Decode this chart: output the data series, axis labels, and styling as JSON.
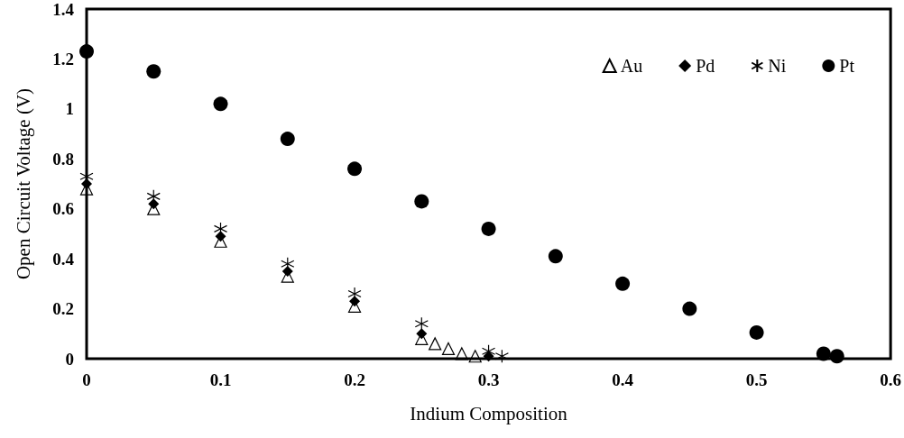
{
  "chart_data": {
    "type": "scatter",
    "xlabel": "Indium Composition",
    "ylabel": "Open Circuit Voltage (V)",
    "xlim": [
      0,
      0.6
    ],
    "xticks": [
      0,
      0.1,
      0.2,
      0.3,
      0.4,
      0.5,
      0.6
    ],
    "ylim": [
      0,
      1.4
    ],
    "yticks": [
      0,
      0.2,
      0.4,
      0.6,
      0.8,
      1,
      1.2,
      1.4
    ],
    "grid": false,
    "legend": "top right",
    "series": [
      {
        "name": "Au",
        "color": "#000000",
        "marker": "triangle",
        "x": [
          0,
          0.05,
          0.1,
          0.15,
          0.2,
          0.25,
          0.26,
          0.27,
          0.28,
          0.29
        ],
        "values": [
          0.68,
          0.6,
          0.47,
          0.33,
          0.21,
          0.08,
          0.06,
          0.04,
          0.02,
          0.01
        ]
      },
      {
        "name": "Pd",
        "color": "#000000",
        "marker": "diamond",
        "x": [
          0,
          0.05,
          0.1,
          0.15,
          0.2,
          0.25,
          0.3
        ],
        "values": [
          0.7,
          0.62,
          0.49,
          0.35,
          0.23,
          0.1,
          0.01
        ]
      },
      {
        "name": "Ni",
        "color": "#000000",
        "marker": "cross",
        "x": [
          0,
          0.05,
          0.1,
          0.15,
          0.2,
          0.25,
          0.3,
          0.31
        ],
        "values": [
          0.73,
          0.65,
          0.52,
          0.38,
          0.26,
          0.14,
          0.03,
          0.01
        ]
      },
      {
        "name": "Pt",
        "color": "#000000",
        "marker": "circle",
        "x": [
          0,
          0.05,
          0.1,
          0.15,
          0.2,
          0.25,
          0.3,
          0.35,
          0.4,
          0.45,
          0.5,
          0.55,
          0.56
        ],
        "values": [
          1.23,
          1.15,
          1.02,
          0.88,
          0.76,
          0.63,
          0.52,
          0.41,
          0.3,
          0.2,
          0.105,
          0.02,
          0.01
        ]
      }
    ]
  }
}
